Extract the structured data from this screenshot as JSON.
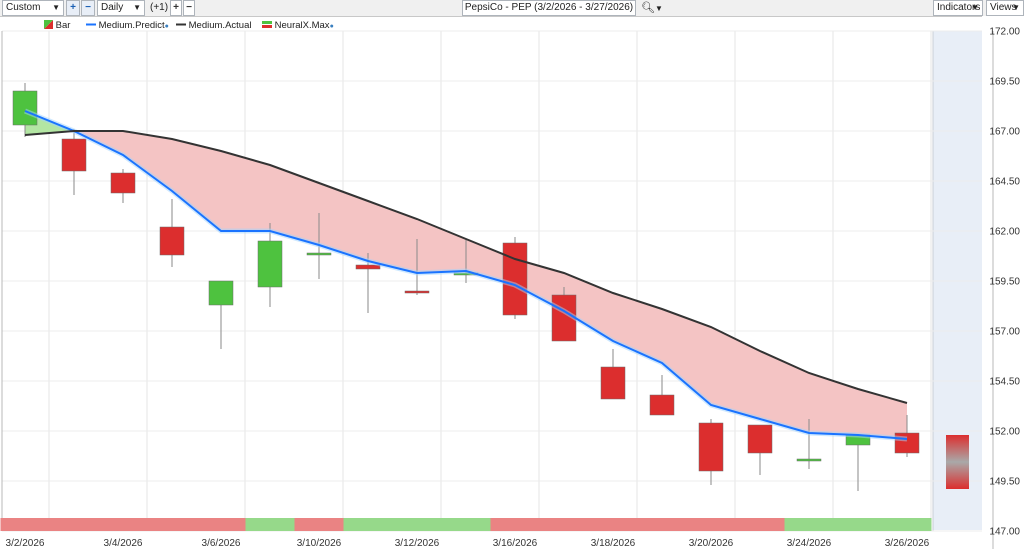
{
  "toolbar": {
    "custom_label": "Custom",
    "period_label": "Daily",
    "offset_label": "(+1)",
    "symbol_title": "PepsiCo - PEP (3/2/2026 - 3/27/2026)",
    "indicators_label": "Indicators",
    "views_label": "Views"
  },
  "legend": [
    {
      "label": "Bar",
      "icon": "bar-icon"
    },
    {
      "label": "Medium.Predict",
      "color": "#1a73ff"
    },
    {
      "label": "Medium.Actual",
      "color": "#333333"
    },
    {
      "label": "NeuralX.Max",
      "icon": "neural-icon"
    }
  ],
  "colors": {
    "up": "#4ec23f",
    "down": "#dc2e2e",
    "predict": "#1a73ff",
    "actual": "#333333",
    "fill_above": "#f4c4c4",
    "fill_below": "#b3e6a3",
    "strip_red": "#ea8383",
    "strip_green": "#96d98a",
    "forecast_bg": "#e8eef7"
  },
  "chart_data": {
    "type": "candlestick",
    "title": "PepsiCo - PEP (3/2/2026 - 3/27/2026)",
    "ylim": [
      147,
      172
    ],
    "y_ticks": [
      "172.00",
      "169.50",
      "167.00",
      "164.50",
      "162.00",
      "159.50",
      "157.00",
      "154.50",
      "152.00",
      "149.50",
      "147.00"
    ],
    "x_labels": [
      "3/2/2026",
      "3/4/2026",
      "3/6/2026",
      "3/10/2026",
      "3/12/2026",
      "3/16/2026",
      "3/18/2026",
      "3/20/2026",
      "3/24/2026",
      "3/26/2026"
    ],
    "x_label_slots": [
      0,
      2,
      4,
      6,
      8,
      10,
      12,
      14,
      16,
      18
    ],
    "candles": [
      {
        "open": 167.3,
        "close": 169.0,
        "high": 169.4,
        "low": 166.7
      },
      {
        "open": 166.6,
        "close": 165.0,
        "high": 167.1,
        "low": 163.8
      },
      {
        "open": 164.9,
        "close": 163.9,
        "high": 165.1,
        "low": 163.4
      },
      {
        "open": 162.2,
        "close": 160.8,
        "high": 163.6,
        "low": 160.2
      },
      {
        "open": 158.3,
        "close": 159.5,
        "high": 159.5,
        "low": 156.1
      },
      {
        "open": 159.2,
        "close": 161.5,
        "high": 162.4,
        "low": 158.2
      },
      {
        "open": 160.8,
        "close": 160.9,
        "high": 162.9,
        "low": 159.6
      },
      {
        "open": 160.3,
        "close": 160.1,
        "high": 160.9,
        "low": 157.9
      },
      {
        "open": 159.0,
        "close": 158.9,
        "high": 161.6,
        "low": 158.8
      },
      {
        "open": 159.8,
        "close": 159.9,
        "high": 161.6,
        "low": 159.4
      },
      {
        "open": 161.4,
        "close": 157.8,
        "high": 161.7,
        "low": 157.6
      },
      {
        "open": 158.8,
        "close": 156.5,
        "high": 159.2,
        "low": 156.5
      },
      {
        "open": 155.2,
        "close": 153.6,
        "high": 156.1,
        "low": 153.6
      },
      {
        "open": 153.8,
        "close": 152.8,
        "high": 154.8,
        "low": 152.8
      },
      {
        "open": 152.4,
        "close": 150.0,
        "high": 152.6,
        "low": 149.3
      },
      {
        "open": 152.3,
        "close": 150.9,
        "high": 152.3,
        "low": 149.8
      },
      {
        "open": 150.5,
        "close": 150.6,
        "high": 152.6,
        "low": 150.1
      },
      {
        "open": 151.3,
        "close": 151.8,
        "high": 151.8,
        "low": 149.0
      },
      {
        "open": 151.9,
        "close": 150.9,
        "high": 152.8,
        "low": 150.7
      }
    ],
    "predict": [
      168.0,
      167.0,
      165.8,
      164.0,
      162.0,
      162.0,
      161.3,
      160.5,
      159.9,
      160.0,
      159.3,
      158.0,
      156.5,
      155.4,
      153.3,
      152.6,
      151.9,
      151.8,
      151.6
    ],
    "actual": [
      166.8,
      167.0,
      167.0,
      166.6,
      166.0,
      165.3,
      164.4,
      163.5,
      162.6,
      161.6,
      160.6,
      159.9,
      158.9,
      158.1,
      157.2,
      156.0,
      154.9,
      154.1,
      153.4
    ],
    "forecast": {
      "high": 151.8,
      "low": 149.1
    },
    "strip": [
      "red",
      "red",
      "red",
      "red",
      "red",
      "green",
      "red",
      "green",
      "green",
      "green",
      "red",
      "red",
      "red",
      "red",
      "red",
      "red",
      "green",
      "green",
      "green"
    ]
  }
}
